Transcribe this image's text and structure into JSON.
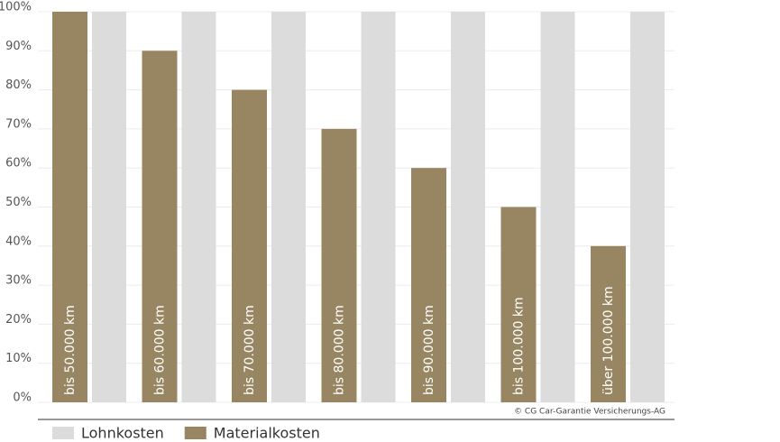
{
  "chart_data": {
    "type": "bar",
    "categories": [
      "bis 50.000 km",
      "bis 60.000 km",
      "bis 70.000 km",
      "bis 80.000 km",
      "bis 90.000 km",
      "bis 100.000 km",
      "über 100.000 km"
    ],
    "series": [
      {
        "name": "Lohnkosten",
        "color": "#dcdcdc",
        "values": [
          100,
          100,
          100,
          100,
          100,
          100,
          100
        ]
      },
      {
        "name": "Materialkosten",
        "color": "#978661",
        "values": [
          100,
          90,
          80,
          70,
          60,
          50,
          40
        ]
      }
    ],
    "ylim": [
      0,
      100
    ],
    "yticks": [
      {
        "value": 0,
        "label": "0%"
      },
      {
        "value": 10,
        "label": "10%"
      },
      {
        "value": 20,
        "label": "20%"
      },
      {
        "value": 30,
        "label": "30%"
      },
      {
        "value": 40,
        "label": "40%"
      },
      {
        "value": 50,
        "label": "50%"
      },
      {
        "value": 60,
        "label": "60%"
      },
      {
        "value": 70,
        "label": "70%"
      },
      {
        "value": 80,
        "label": "80%"
      },
      {
        "value": 90,
        "label": "90%"
      },
      {
        "value": 100,
        "label": "100%"
      }
    ],
    "grid": true,
    "legend": "bottom-left",
    "annotation": "© CG Car-Garantie Versicherungs-AG"
  }
}
